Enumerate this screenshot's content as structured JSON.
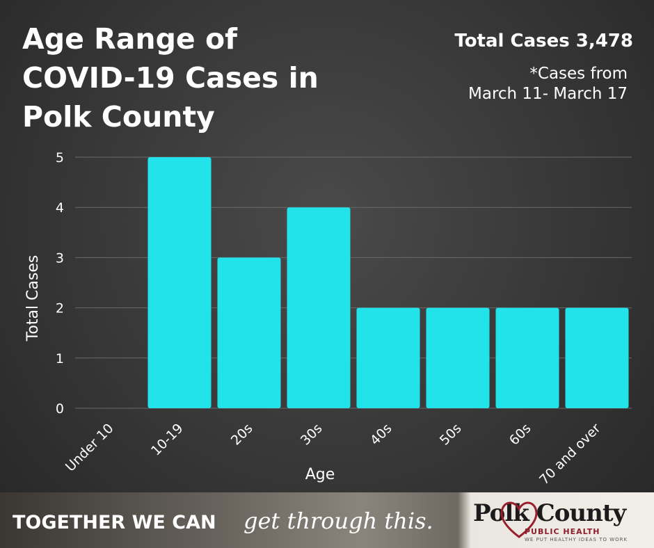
{
  "header": {
    "title_lines": [
      "Age Range of",
      "COVID-19 Cases in",
      "Polk County"
    ],
    "total_cases": "Total Cases 3,478",
    "note_lines": [
      "*Cases from",
      "March 11- March 17"
    ]
  },
  "chart_data": {
    "type": "bar",
    "categories": [
      "Under 10",
      "10-19",
      "20s",
      "30s",
      "40s",
      "50s",
      "60s",
      "70 and over"
    ],
    "values": [
      0,
      5,
      3,
      4,
      2,
      2,
      2,
      2
    ],
    "xlabel": "Age",
    "ylabel": "Total Cases",
    "ylim": [
      0,
      5
    ],
    "yticks": [
      0,
      1,
      2,
      3,
      4,
      5
    ],
    "grid": true,
    "bar_color": "#22e2ea"
  },
  "footer": {
    "slogan": "TOGETHER WE CAN",
    "slogan_script": "get through this.",
    "logo_name": "Polk County",
    "logo_sub": "PUBLIC HEALTH",
    "logo_tagline": "WE PUT HEALTHY IDEAS TO WORK",
    "logo_heart_color": "#9a1f2e"
  }
}
